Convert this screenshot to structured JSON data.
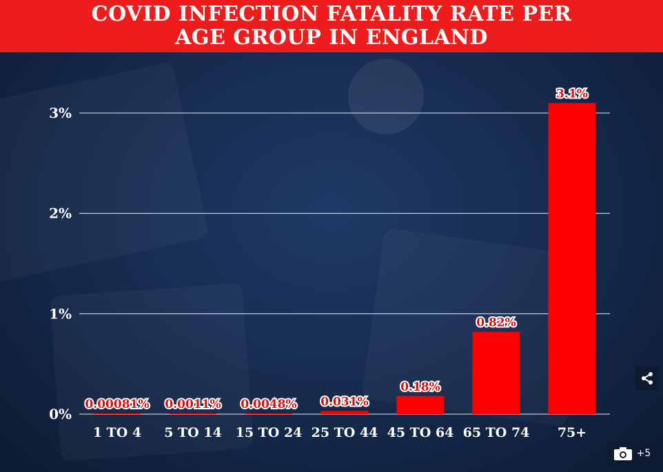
{
  "title_lines": [
    "COVID INFECTION FATALITY RATE PER",
    "AGE GROUP IN ENGLAND"
  ],
  "chart_data": {
    "type": "bar",
    "title": "COVID INFECTION FATALITY RATE PER AGE GROUP IN ENGLAND",
    "xlabel": "",
    "ylabel": "",
    "categories": [
      "1 TO 4",
      "5 TO 14",
      "15 TO 24",
      "25 TO 44",
      "45 TO 64",
      "65 TO 74",
      "75+"
    ],
    "values": [
      0.00081,
      0.0011,
      0.0048,
      0.031,
      0.18,
      0.82,
      3.1
    ],
    "value_labels": [
      "0.00081%",
      "0.0011%",
      "0.0048%",
      "0.031%",
      "0.18%",
      "0.82%",
      "3.1%"
    ],
    "ylim": [
      0,
      3
    ],
    "yticks": [
      0,
      1,
      2,
      3
    ],
    "ytick_labels": [
      "0%",
      "1%",
      "2%",
      "3%"
    ],
    "grid": true,
    "bar_color": "#ff0000"
  },
  "controls": {
    "share_icon": "share-icon",
    "camera_icon": "camera-icon",
    "gallery_count": "+5"
  },
  "colors": {
    "title_bg": "#ee1c1c",
    "background": "#15294b"
  }
}
